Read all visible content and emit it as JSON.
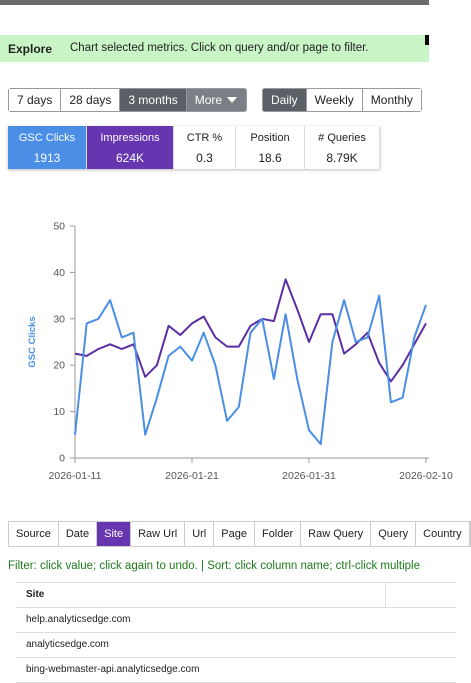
{
  "header": {
    "title": "Explore",
    "description": "Chart selected metrics. Click on query and/or page to filter."
  },
  "range_buttons": [
    "7 days",
    "28 days",
    "3 months",
    "More"
  ],
  "active_range": 2,
  "granularity_buttons": [
    "Daily",
    "Weekly",
    "Monthly"
  ],
  "active_granularity": 0,
  "metrics": [
    {
      "label": "GSC Clicks",
      "value": 1913,
      "color": "#4a8ee6"
    },
    {
      "label": "Impressions",
      "value": "624K",
      "color": "#6536b0"
    },
    {
      "label": "CTR %",
      "value": 0.3
    },
    {
      "label": "Position",
      "value": 18.6
    },
    {
      "label": "# Queries",
      "value": "8.79K"
    }
  ],
  "chart_data": {
    "type": "line",
    "y_label": "GSC Clicks",
    "x": [
      "2026-01-11",
      "2026-01-12",
      "2026-01-13",
      "2026-01-14",
      "2026-01-15",
      "2026-01-16",
      "2026-01-17",
      "2026-01-18",
      "2026-01-19",
      "2026-01-20",
      "2026-01-21",
      "2026-01-22",
      "2026-01-23",
      "2026-01-24",
      "2026-01-25",
      "2026-01-26",
      "2026-01-27",
      "2026-01-28",
      "2026-01-29",
      "2026-01-30",
      "2026-01-31",
      "2026-02-01",
      "2026-02-02",
      "2026-02-03",
      "2026-02-04",
      "2026-02-05",
      "2026-02-06",
      "2026-02-07",
      "2026-02-08",
      "2026-02-09",
      "2026-02-10"
    ],
    "series": [
      {
        "name": "GSC Clicks",
        "color": "#4a8ee6",
        "values": [
          5,
          29,
          30,
          34,
          26,
          27,
          5,
          13,
          22,
          24,
          21,
          27,
          20,
          8,
          11,
          27,
          30,
          17,
          31,
          17,
          6,
          3,
          25,
          34,
          25,
          26,
          35,
          12,
          13,
          26,
          33
        ]
      },
      {
        "name": "Impressions",
        "color": "#5b2fa3",
        "values": [
          22.5,
          22,
          23.5,
          24.5,
          23.5,
          24.5,
          17.5,
          20,
          28.5,
          26.5,
          29,
          30.5,
          26,
          24,
          24,
          28.5,
          30,
          29.5,
          38.5,
          32,
          25,
          31,
          31,
          22.5,
          24.5,
          27,
          20.5,
          16.5,
          20,
          24.5,
          29
        ]
      }
    ],
    "xlim": [
      "2026-01-11",
      "2026-02-10"
    ],
    "xticks": [
      "2026-01-11",
      "2026-01-21",
      "2026-01-31",
      "2026-02-10"
    ],
    "ylim": [
      0,
      50
    ],
    "yticks": [
      0,
      10,
      20,
      30,
      40,
      50
    ],
    "grid": false
  },
  "tabs": [
    "Source",
    "Date",
    "Site",
    "Raw Url",
    "Url",
    "Page",
    "Folder",
    "Raw Query",
    "Query",
    "Country"
  ],
  "active_tab": 2,
  "filter_help": "Filter: click value; click again to undo. | Sort: click column name; ctrl-click multiple",
  "table": {
    "columns": [
      "Site"
    ],
    "rows": [
      [
        "help.analyticsedge.com"
      ],
      [
        "analyticsedge.com"
      ],
      [
        "bing-webmaster-api.analyticsedge.com"
      ]
    ]
  }
}
